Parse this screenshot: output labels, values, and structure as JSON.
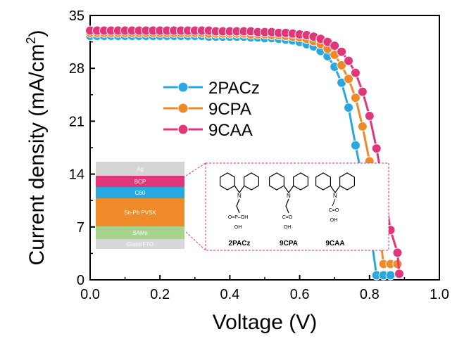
{
  "chart_data": {
    "type": "line",
    "title": "",
    "xlabel": "Voltage (V)",
    "ylabel": "Current density (mA/cm",
    "ylabel_sup": "2",
    "ylabel_close": ")",
    "xlim": [
      0.0,
      1.0
    ],
    "ylim": [
      0,
      35
    ],
    "xticks": [
      "0.0",
      "0.2",
      "0.4",
      "0.6",
      "0.8",
      "1.0"
    ],
    "yticks": [
      "0",
      "7",
      "14",
      "21",
      "28",
      "35"
    ],
    "grid": false,
    "legend_position": "upper-middle",
    "series": [
      {
        "name": "2PACz",
        "color": "#29a8e0",
        "x": [
          0.0,
          0.02,
          0.04,
          0.06,
          0.08,
          0.1,
          0.12,
          0.14,
          0.16,
          0.18,
          0.2,
          0.22,
          0.24,
          0.26,
          0.28,
          0.3,
          0.32,
          0.34,
          0.36,
          0.38,
          0.4,
          0.42,
          0.44,
          0.46,
          0.48,
          0.5,
          0.52,
          0.54,
          0.56,
          0.58,
          0.6,
          0.62,
          0.64,
          0.66,
          0.68,
          0.7,
          0.72,
          0.74,
          0.76,
          0.78,
          0.8,
          0.82,
          0.84,
          0.86
        ],
        "y": [
          32.3,
          32.3,
          32.3,
          32.3,
          32.3,
          32.3,
          32.3,
          32.3,
          32.3,
          32.3,
          32.3,
          32.3,
          32.3,
          32.3,
          32.3,
          32.3,
          32.3,
          32.2,
          32.2,
          32.2,
          32.2,
          32.2,
          32.2,
          32.1,
          32.1,
          32.0,
          32.0,
          31.9,
          31.8,
          31.7,
          31.5,
          31.2,
          30.9,
          30.3,
          29.6,
          28.2,
          26.1,
          22.8,
          17.8,
          13.2,
          7.3,
          0.6,
          0.6,
          0.6
        ]
      },
      {
        "name": "9CPA",
        "color": "#ee8a2a",
        "x": [
          0.0,
          0.02,
          0.04,
          0.06,
          0.08,
          0.1,
          0.12,
          0.14,
          0.16,
          0.18,
          0.2,
          0.22,
          0.24,
          0.26,
          0.28,
          0.3,
          0.32,
          0.34,
          0.36,
          0.38,
          0.4,
          0.42,
          0.44,
          0.46,
          0.48,
          0.5,
          0.52,
          0.54,
          0.56,
          0.58,
          0.6,
          0.62,
          0.64,
          0.66,
          0.68,
          0.7,
          0.72,
          0.74,
          0.76,
          0.78,
          0.8,
          0.82,
          0.84,
          0.86,
          0.88
        ],
        "y": [
          32.7,
          32.7,
          32.7,
          32.7,
          32.7,
          32.7,
          32.7,
          32.7,
          32.7,
          32.7,
          32.7,
          32.7,
          32.7,
          32.7,
          32.7,
          32.7,
          32.7,
          32.6,
          32.6,
          32.6,
          32.6,
          32.6,
          32.6,
          32.5,
          32.5,
          32.5,
          32.4,
          32.4,
          32.3,
          32.2,
          32.1,
          31.9,
          31.6,
          31.2,
          30.6,
          29.8,
          28.4,
          26.6,
          24.1,
          20.3,
          15.7,
          9.9,
          2.1,
          2.1,
          2.1
        ]
      },
      {
        "name": "9CAA",
        "color": "#e0377a",
        "x": [
          0.0,
          0.02,
          0.04,
          0.06,
          0.08,
          0.1,
          0.12,
          0.14,
          0.16,
          0.18,
          0.2,
          0.22,
          0.24,
          0.26,
          0.28,
          0.3,
          0.32,
          0.34,
          0.36,
          0.38,
          0.4,
          0.42,
          0.44,
          0.46,
          0.48,
          0.5,
          0.52,
          0.54,
          0.56,
          0.58,
          0.6,
          0.62,
          0.64,
          0.66,
          0.68,
          0.7,
          0.72,
          0.74,
          0.76,
          0.78,
          0.8,
          0.82,
          0.84,
          0.86,
          0.88,
          0.885
        ],
        "y": [
          33.0,
          33.0,
          33.0,
          33.0,
          33.0,
          33.0,
          33.0,
          33.0,
          33.0,
          33.0,
          33.0,
          33.0,
          33.0,
          33.0,
          33.0,
          33.0,
          33.0,
          33.0,
          32.9,
          32.9,
          32.9,
          32.9,
          32.9,
          32.9,
          32.8,
          32.8,
          32.8,
          32.7,
          32.7,
          32.6,
          32.5,
          32.4,
          32.2,
          31.9,
          31.5,
          31.0,
          30.2,
          29.0,
          27.4,
          24.9,
          21.7,
          17.4,
          12.2,
          6.6,
          3.6,
          0.8
        ]
      }
    ],
    "inset_stack": {
      "layers": [
        {
          "label": "Ag",
          "color": "#d4d4d4",
          "text_color": "#ffffff"
        },
        {
          "label": "BCP",
          "color": "#e0377a",
          "text_color": "#ffffff"
        },
        {
          "label": "C60",
          "color": "#29a8e0",
          "text_color": "#ffffff"
        },
        {
          "label": "Sn-Pb PVSK",
          "color": "#ee8a2a",
          "text_color": "#ffffff"
        },
        {
          "label": "SAMs",
          "color": "#a8d38a",
          "text_color": "#ffffff"
        },
        {
          "label": "Glass/FTO",
          "color": "#d8d8d8",
          "text_color": "#ffffff"
        }
      ]
    },
    "molecules": [
      {
        "name": "2PACz",
        "group_top": "O=P–OH",
        "group_bottom": "OH"
      },
      {
        "name": "9CPA",
        "group_top": "C=O",
        "group_bottom": "OH"
      },
      {
        "name": "9CAA",
        "group_top": "C=O",
        "group_bottom": "OH"
      }
    ],
    "inset_border_color": "#e0377a"
  }
}
